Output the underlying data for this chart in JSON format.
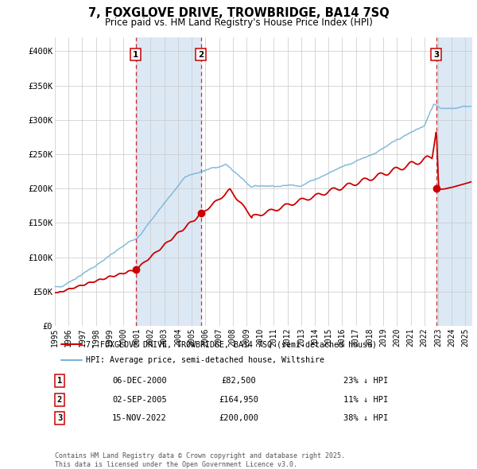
{
  "title": "7, FOXGLOVE DRIVE, TROWBRIDGE, BA14 7SQ",
  "subtitle": "Price paid vs. HM Land Registry's House Price Index (HPI)",
  "ylim": [
    0,
    420000
  ],
  "yticks": [
    0,
    50000,
    100000,
    150000,
    200000,
    250000,
    300000,
    350000,
    400000
  ],
  "ytick_labels": [
    "£0",
    "£50K",
    "£100K",
    "£150K",
    "£200K",
    "£250K",
    "£300K",
    "£350K",
    "£400K"
  ],
  "xlim_start": 1995.0,
  "xlim_end": 2025.5,
  "xticks": [
    1995,
    1996,
    1997,
    1998,
    1999,
    2000,
    2001,
    2002,
    2003,
    2004,
    2005,
    2006,
    2007,
    2008,
    2009,
    2010,
    2011,
    2012,
    2013,
    2014,
    2015,
    2016,
    2017,
    2018,
    2019,
    2020,
    2021,
    2022,
    2023,
    2024,
    2025
  ],
  "hpi_color": "#7ab4d8",
  "price_color": "#cc0000",
  "shading_color": "#dce9f5",
  "vline1_x": 2000.92,
  "vline2_x": 2005.67,
  "vline3_x": 2022.88,
  "marker1_x": 2000.92,
  "marker1_y": 82500,
  "marker2_x": 2005.67,
  "marker2_y": 164950,
  "marker3_x": 2022.88,
  "marker3_y": 200000,
  "legend_line1": "7, FOXGLOVE DRIVE, TROWBRIDGE, BA14 7SQ (semi-detached house)",
  "legend_line2": "HPI: Average price, semi-detached house, Wiltshire",
  "table_rows": [
    {
      "num": "1",
      "date": "06-DEC-2000",
      "price": "£82,500",
      "hpi": "23% ↓ HPI"
    },
    {
      "num": "2",
      "date": "02-SEP-2005",
      "price": "£164,950",
      "hpi": "11% ↓ HPI"
    },
    {
      "num": "3",
      "date": "15-NOV-2022",
      "price": "£200,000",
      "hpi": "38% ↓ HPI"
    }
  ],
  "footnote": "Contains HM Land Registry data © Crown copyright and database right 2025.\nThis data is licensed under the Open Government Licence v3.0.",
  "background_color": "#ffffff",
  "grid_color": "#c8c8c8"
}
